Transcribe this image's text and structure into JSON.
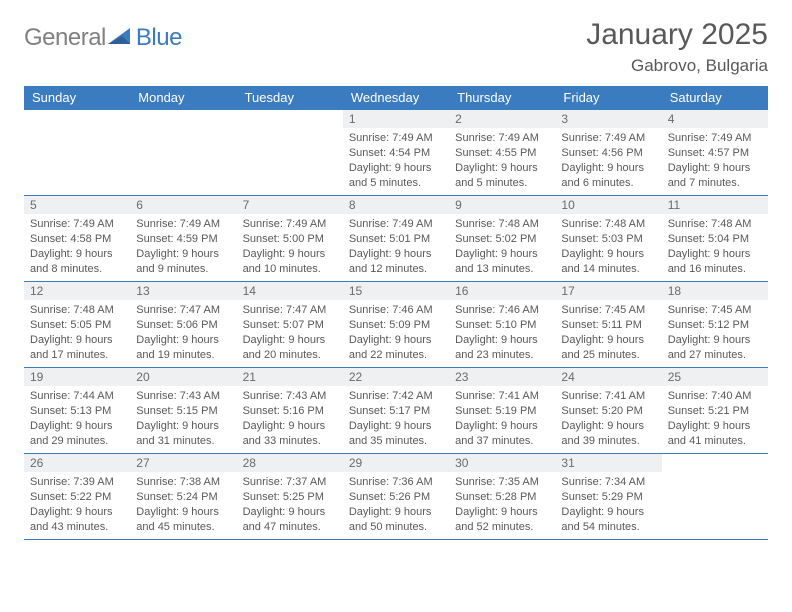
{
  "brand": {
    "part1": "General",
    "part2": "Blue"
  },
  "title": "January 2025",
  "location": "Gabrovo, Bulgaria",
  "colors": {
    "accent": "#3b7bbf",
    "header_bg": "#3b7bbf",
    "daynum_bg": "#eef0f2",
    "text": "#595959"
  },
  "weekdays": [
    "Sunday",
    "Monday",
    "Tuesday",
    "Wednesday",
    "Thursday",
    "Friday",
    "Saturday"
  ],
  "weeks": [
    [
      null,
      null,
      null,
      {
        "n": "1",
        "sr": "7:49 AM",
        "ss": "4:54 PM",
        "dl": "9 hours and 5 minutes."
      },
      {
        "n": "2",
        "sr": "7:49 AM",
        "ss": "4:55 PM",
        "dl": "9 hours and 5 minutes."
      },
      {
        "n": "3",
        "sr": "7:49 AM",
        "ss": "4:56 PM",
        "dl": "9 hours and 6 minutes."
      },
      {
        "n": "4",
        "sr": "7:49 AM",
        "ss": "4:57 PM",
        "dl": "9 hours and 7 minutes."
      }
    ],
    [
      {
        "n": "5",
        "sr": "7:49 AM",
        "ss": "4:58 PM",
        "dl": "9 hours and 8 minutes."
      },
      {
        "n": "6",
        "sr": "7:49 AM",
        "ss": "4:59 PM",
        "dl": "9 hours and 9 minutes."
      },
      {
        "n": "7",
        "sr": "7:49 AM",
        "ss": "5:00 PM",
        "dl": "9 hours and 10 minutes."
      },
      {
        "n": "8",
        "sr": "7:49 AM",
        "ss": "5:01 PM",
        "dl": "9 hours and 12 minutes."
      },
      {
        "n": "9",
        "sr": "7:48 AM",
        "ss": "5:02 PM",
        "dl": "9 hours and 13 minutes."
      },
      {
        "n": "10",
        "sr": "7:48 AM",
        "ss": "5:03 PM",
        "dl": "9 hours and 14 minutes."
      },
      {
        "n": "11",
        "sr": "7:48 AM",
        "ss": "5:04 PM",
        "dl": "9 hours and 16 minutes."
      }
    ],
    [
      {
        "n": "12",
        "sr": "7:48 AM",
        "ss": "5:05 PM",
        "dl": "9 hours and 17 minutes."
      },
      {
        "n": "13",
        "sr": "7:47 AM",
        "ss": "5:06 PM",
        "dl": "9 hours and 19 minutes."
      },
      {
        "n": "14",
        "sr": "7:47 AM",
        "ss": "5:07 PM",
        "dl": "9 hours and 20 minutes."
      },
      {
        "n": "15",
        "sr": "7:46 AM",
        "ss": "5:09 PM",
        "dl": "9 hours and 22 minutes."
      },
      {
        "n": "16",
        "sr": "7:46 AM",
        "ss": "5:10 PM",
        "dl": "9 hours and 23 minutes."
      },
      {
        "n": "17",
        "sr": "7:45 AM",
        "ss": "5:11 PM",
        "dl": "9 hours and 25 minutes."
      },
      {
        "n": "18",
        "sr": "7:45 AM",
        "ss": "5:12 PM",
        "dl": "9 hours and 27 minutes."
      }
    ],
    [
      {
        "n": "19",
        "sr": "7:44 AM",
        "ss": "5:13 PM",
        "dl": "9 hours and 29 minutes."
      },
      {
        "n": "20",
        "sr": "7:43 AM",
        "ss": "5:15 PM",
        "dl": "9 hours and 31 minutes."
      },
      {
        "n": "21",
        "sr": "7:43 AM",
        "ss": "5:16 PM",
        "dl": "9 hours and 33 minutes."
      },
      {
        "n": "22",
        "sr": "7:42 AM",
        "ss": "5:17 PM",
        "dl": "9 hours and 35 minutes."
      },
      {
        "n": "23",
        "sr": "7:41 AM",
        "ss": "5:19 PM",
        "dl": "9 hours and 37 minutes."
      },
      {
        "n": "24",
        "sr": "7:41 AM",
        "ss": "5:20 PM",
        "dl": "9 hours and 39 minutes."
      },
      {
        "n": "25",
        "sr": "7:40 AM",
        "ss": "5:21 PM",
        "dl": "9 hours and 41 minutes."
      }
    ],
    [
      {
        "n": "26",
        "sr": "7:39 AM",
        "ss": "5:22 PM",
        "dl": "9 hours and 43 minutes."
      },
      {
        "n": "27",
        "sr": "7:38 AM",
        "ss": "5:24 PM",
        "dl": "9 hours and 45 minutes."
      },
      {
        "n": "28",
        "sr": "7:37 AM",
        "ss": "5:25 PM",
        "dl": "9 hours and 47 minutes."
      },
      {
        "n": "29",
        "sr": "7:36 AM",
        "ss": "5:26 PM",
        "dl": "9 hours and 50 minutes."
      },
      {
        "n": "30",
        "sr": "7:35 AM",
        "ss": "5:28 PM",
        "dl": "9 hours and 52 minutes."
      },
      {
        "n": "31",
        "sr": "7:34 AM",
        "ss": "5:29 PM",
        "dl": "9 hours and 54 minutes."
      },
      null
    ]
  ],
  "labels": {
    "sunrise": "Sunrise:",
    "sunset": "Sunset:",
    "daylight": "Daylight:"
  }
}
